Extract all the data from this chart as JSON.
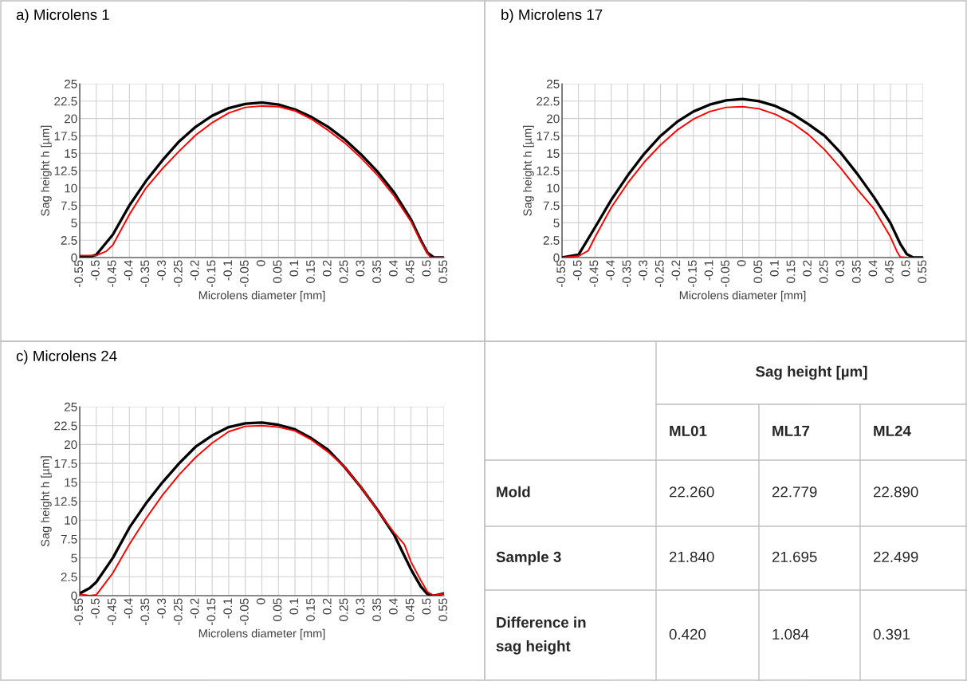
{
  "chart_data": [
    {
      "type": "line",
      "title": "a) Microlens 1",
      "xlabel": "Microlens diameter [mm]",
      "ylabel": "Sag height h [µm]",
      "xlim": [
        -0.55,
        0.55
      ],
      "xticks": [
        -0.55,
        -0.5,
        -0.45,
        -0.4,
        -0.35,
        -0.3,
        -0.25,
        -0.2,
        -0.15,
        -0.1,
        -0.05,
        0,
        0.05,
        0.1,
        0.15,
        0.2,
        0.25,
        0.3,
        0.35,
        0.4,
        0.45,
        0.5,
        0.55
      ],
      "ylim": [
        0,
        25
      ],
      "yticks": [
        0,
        2.5,
        5,
        7.5,
        10,
        12.5,
        15,
        17.5,
        20,
        22.5,
        25
      ],
      "grid": true,
      "series": [
        {
          "color": "#000000",
          "x": [
            -0.55,
            -0.52,
            -0.5,
            -0.45,
            -0.4,
            -0.35,
            -0.3,
            -0.25,
            -0.2,
            -0.15,
            -0.1,
            -0.05,
            0,
            0.05,
            0.1,
            0.15,
            0.2,
            0.25,
            0.3,
            0.35,
            0.4,
            0.45,
            0.48,
            0.5,
            0.52,
            0.55
          ],
          "values": [
            0.1,
            0.1,
            0.4,
            3.3,
            7.5,
            11,
            14,
            16.7,
            18.8,
            20.4,
            21.5,
            22.1,
            22.3,
            22.0,
            21.3,
            20.2,
            18.8,
            17.0,
            14.8,
            12.3,
            9.3,
            5.5,
            2.5,
            0.7,
            0,
            0
          ]
        },
        {
          "color": "#ff0000",
          "x": [
            -0.55,
            -0.5,
            -0.47,
            -0.45,
            -0.4,
            -0.35,
            -0.3,
            -0.25,
            -0.2,
            -0.15,
            -0.1,
            -0.05,
            0,
            0.05,
            0.1,
            0.15,
            0.2,
            0.25,
            0.3,
            0.35,
            0.4,
            0.45,
            0.48,
            0.5,
            0.51,
            0.55
          ],
          "values": [
            0.3,
            0.3,
            0.9,
            1.8,
            6.2,
            10,
            12.8,
            15.3,
            17.6,
            19.4,
            20.8,
            21.6,
            21.8,
            21.7,
            21.1,
            19.9,
            18.3,
            16.5,
            14.3,
            11.8,
            8.8,
            5.2,
            2.3,
            0.6,
            0,
            0
          ]
        }
      ]
    },
    {
      "type": "line",
      "title": "b) Microlens 17",
      "xlabel": "Microlens diameter [mm]",
      "ylabel": "Sag height h [µm]",
      "xlim": [
        -0.55,
        0.55
      ],
      "xticks": [
        -0.55,
        -0.5,
        -0.45,
        -0.4,
        -0.35,
        -0.3,
        -0.25,
        -0.2,
        -0.15,
        -0.1,
        -0.05,
        0,
        0.05,
        0.1,
        0.15,
        0.2,
        0.25,
        0.3,
        0.35,
        0.4,
        0.45,
        0.5,
        0.55
      ],
      "ylim": [
        0,
        25
      ],
      "yticks": [
        0,
        2.5,
        5,
        7.5,
        10,
        12.5,
        15,
        17.5,
        20,
        22.5,
        25
      ],
      "grid": true,
      "series": [
        {
          "color": "#000000",
          "x": [
            -0.55,
            -0.5,
            -0.45,
            -0.4,
            -0.35,
            -0.3,
            -0.25,
            -0.2,
            -0.15,
            -0.1,
            -0.05,
            0,
            0.05,
            0.1,
            0.15,
            0.2,
            0.25,
            0.3,
            0.35,
            0.4,
            0.45,
            0.48,
            0.5,
            0.52,
            0.55
          ],
          "values": [
            0,
            0.4,
            4.3,
            8.3,
            11.8,
            14.9,
            17.5,
            19.5,
            21.0,
            22.0,
            22.6,
            22.8,
            22.5,
            21.8,
            20.7,
            19.2,
            17.5,
            15.0,
            12.0,
            8.7,
            5.0,
            2.0,
            0.5,
            0,
            0
          ]
        },
        {
          "color": "#ff0000",
          "x": [
            -0.55,
            -0.5,
            -0.47,
            -0.45,
            -0.4,
            -0.35,
            -0.3,
            -0.25,
            -0.2,
            -0.15,
            -0.1,
            -0.05,
            0,
            0.05,
            0.1,
            0.15,
            0.2,
            0.25,
            0.3,
            0.35,
            0.4,
            0.45,
            0.47,
            0.48,
            0.5,
            0.51
          ],
          "values": [
            0,
            0.2,
            1.0,
            2.9,
            7.2,
            10.7,
            13.7,
            16.2,
            18.3,
            19.9,
            21.0,
            21.6,
            21.7,
            21.4,
            20.6,
            19.4,
            17.7,
            15.5,
            12.8,
            9.8,
            7.0,
            3.0,
            0.9,
            0.1,
            0,
            0
          ]
        }
      ]
    },
    {
      "type": "line",
      "title": "c) Microlens 24",
      "xlabel": "Microlens diameter [mm]",
      "ylabel": "Sag height h [µm]",
      "xlim": [
        -0.55,
        0.55
      ],
      "xticks": [
        -0.55,
        -0.5,
        -0.45,
        -0.4,
        -0.35,
        -0.3,
        -0.25,
        -0.2,
        -0.15,
        -0.1,
        -0.05,
        0,
        0.05,
        0.1,
        0.15,
        0.2,
        0.25,
        0.3,
        0.35,
        0.4,
        0.45,
        0.5,
        0.55
      ],
      "ylim": [
        0,
        25
      ],
      "yticks": [
        0,
        2.5,
        5,
        7.5,
        10,
        12.5,
        15,
        17.5,
        20,
        22.5,
        25
      ],
      "grid": true,
      "series": [
        {
          "color": "#000000",
          "x": [
            -0.55,
            -0.52,
            -0.5,
            -0.45,
            -0.4,
            -0.35,
            -0.3,
            -0.25,
            -0.2,
            -0.15,
            -0.1,
            -0.05,
            0,
            0.05,
            0.1,
            0.15,
            0.2,
            0.25,
            0.3,
            0.35,
            0.4,
            0.45,
            0.48,
            0.5,
            0.52,
            0.55
          ],
          "values": [
            0.3,
            1.0,
            1.8,
            5.0,
            9.0,
            12.2,
            15.0,
            17.5,
            19.7,
            21.2,
            22.3,
            22.8,
            22.9,
            22.6,
            22.0,
            20.8,
            19.3,
            17.0,
            14.3,
            11.3,
            8.0,
            3.5,
            1.2,
            0.2,
            0,
            0.3
          ]
        },
        {
          "color": "#ff0000",
          "x": [
            -0.55,
            -0.52,
            -0.5,
            -0.45,
            -0.4,
            -0.35,
            -0.3,
            -0.25,
            -0.2,
            -0.15,
            -0.1,
            -0.05,
            0,
            0.05,
            0.1,
            0.15,
            0.2,
            0.25,
            0.3,
            0.35,
            0.4,
            0.43,
            0.45,
            0.48,
            0.5,
            0.52,
            0.55
          ],
          "values": [
            0.2,
            0,
            0.1,
            3.0,
            6.8,
            10.2,
            13.3,
            16.0,
            18.3,
            20.2,
            21.7,
            22.4,
            22.5,
            22.3,
            21.8,
            20.6,
            19.0,
            17.0,
            14.3,
            11.2,
            8.3,
            6.8,
            4.5,
            2.0,
            0.5,
            0,
            0.3
          ]
        }
      ]
    },
    {
      "type": "other",
      "title": "Sag height [µm]",
      "categories": [
        "ML01",
        "ML17",
        "ML24"
      ],
      "y_categories": [
        "Mold",
        "Sample 3",
        "Difference in sag height"
      ],
      "cell_labels": [
        [
          "22.260",
          "22.779",
          "22.890"
        ],
        [
          "21.840",
          "21.695",
          "22.499"
        ],
        [
          "0.420",
          "1.084",
          "0.391"
        ]
      ]
    }
  ]
}
